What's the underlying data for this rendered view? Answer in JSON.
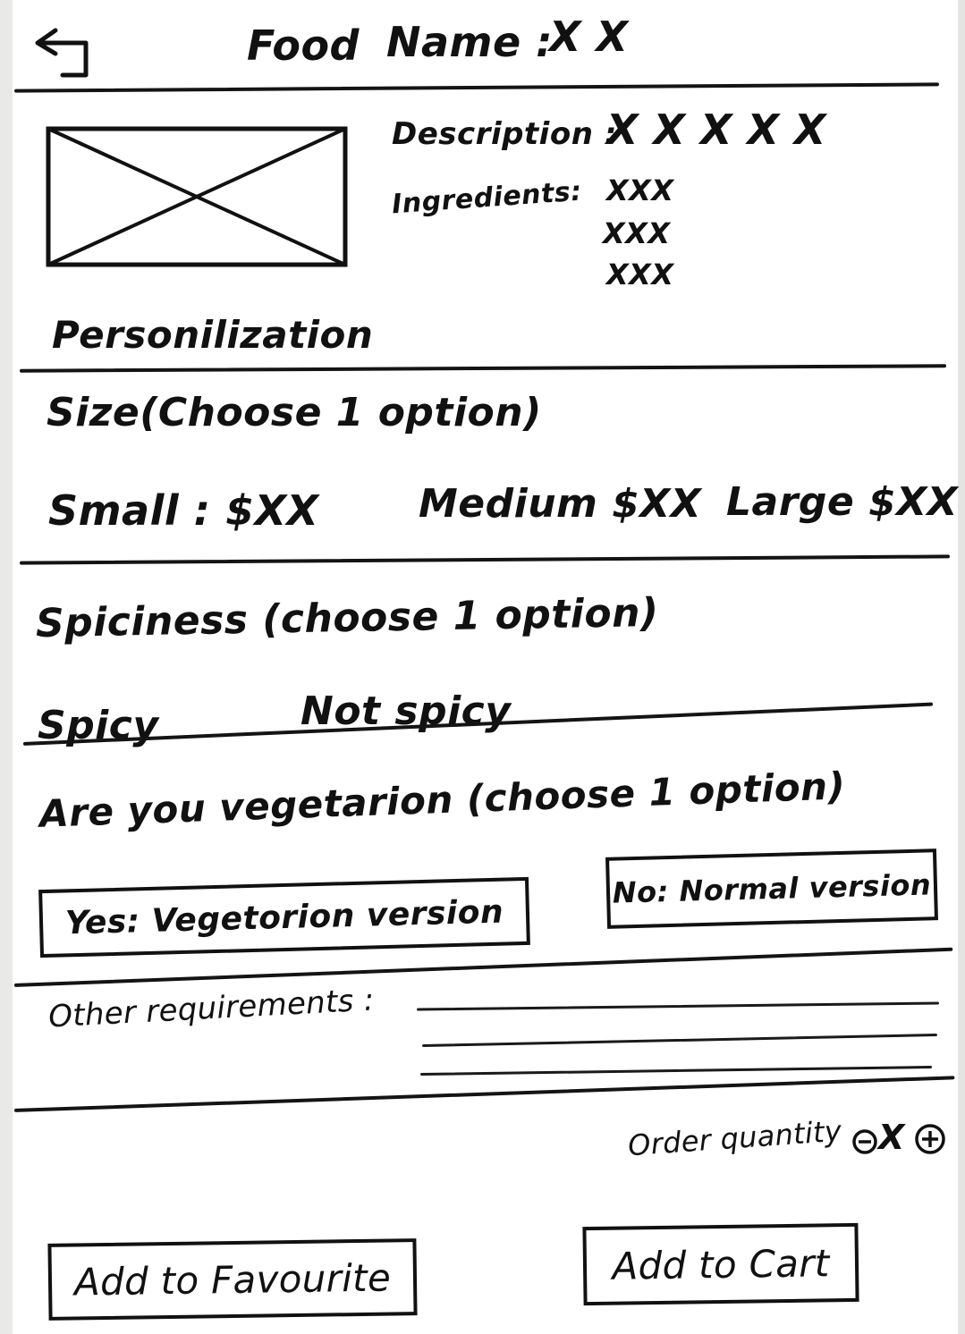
{
  "header": {
    "back_icon": "back-arrow-icon",
    "title_label": "Food",
    "name_label": "Name :",
    "name_value": "X X"
  },
  "food": {
    "image_icon": "image-placeholder-icon",
    "description_label": "Description :",
    "description_value": "X X X  X X",
    "ingredients_label": "Ingredients:",
    "ingredients": [
      "XXX",
      "XXX",
      "XXX"
    ]
  },
  "personalization": {
    "title": "Personilization"
  },
  "size": {
    "title": "Size(Choose 1 option)",
    "options": [
      {
        "label": "Small : $XX"
      },
      {
        "label": "Medium $XX"
      },
      {
        "label": "Large $XX"
      }
    ]
  },
  "spiciness": {
    "title": "Spiciness (choose 1 option)",
    "options": [
      {
        "label": "Spicy"
      },
      {
        "label": "Not spicy"
      }
    ]
  },
  "vegetarian": {
    "title": "Are you vegetarion (choose 1 option)",
    "yes_label": "Yes: Vegetorion version",
    "no_label": "No: Normal version"
  },
  "other": {
    "label": "Other requirements :"
  },
  "quantity": {
    "label": "Order quantity",
    "minus_icon": "minus-circle-icon",
    "value": "X",
    "plus_icon": "plus-circle-icon"
  },
  "actions": {
    "favourite_label": "Add to Favourite",
    "cart_label": "Add to Cart"
  }
}
